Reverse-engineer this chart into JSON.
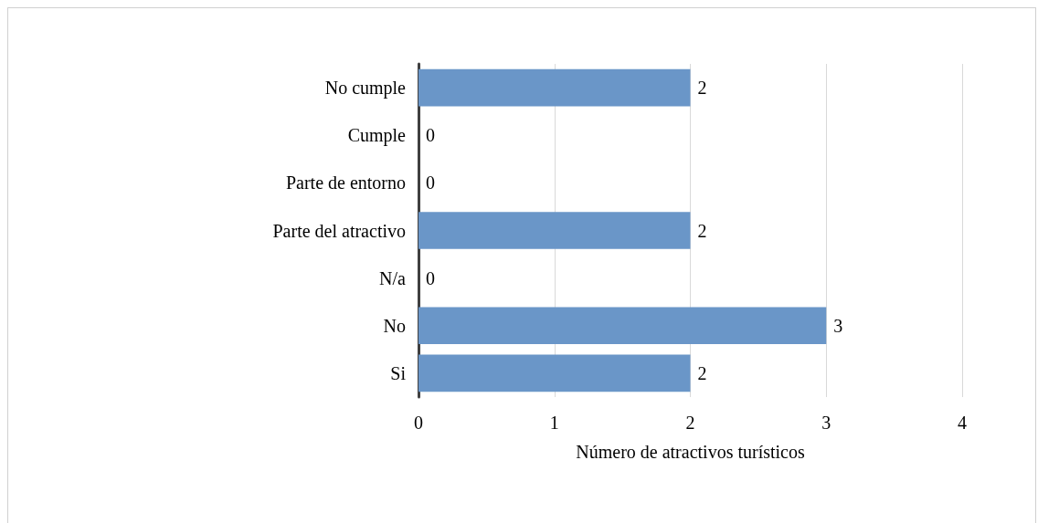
{
  "chart_data": {
    "type": "bar",
    "orientation": "horizontal",
    "categories": [
      "No cumple",
      "Cumple",
      "Parte de entorno",
      "Parte del atractivo",
      "N/a",
      "No",
      "Si"
    ],
    "values": [
      2,
      0,
      0,
      2,
      0,
      3,
      2
    ],
    "color": "#6a96c8",
    "xlim": [
      0,
      4
    ],
    "xticks": [
      0,
      1,
      2,
      3,
      4
    ],
    "xlabel": "Número de atractivos turísticos",
    "grid": "x",
    "data_labels": true
  }
}
